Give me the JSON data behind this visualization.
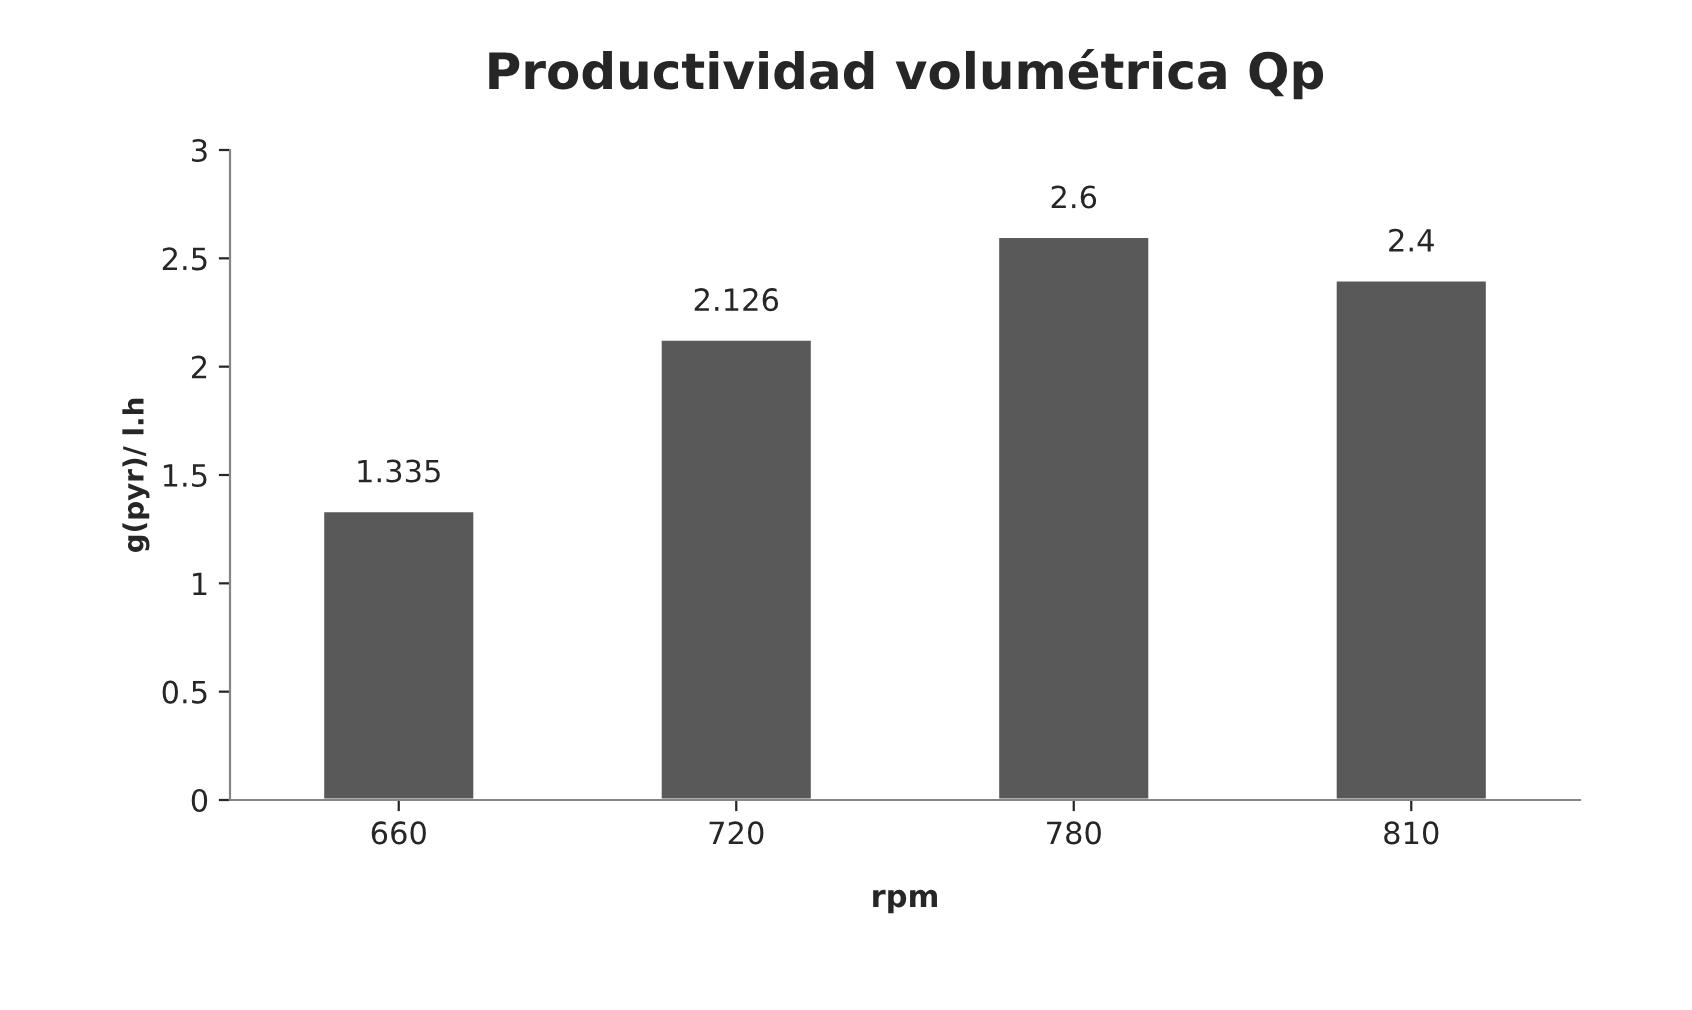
{
  "chart_data": {
    "type": "bar",
    "title": "Productividad volumétrica Qp",
    "xlabel": "rpm",
    "ylabel": "g(pyr)/ l.h",
    "categories": [
      "660",
      "720",
      "780",
      "810"
    ],
    "values": [
      1.335,
      2.126,
      2.6,
      2.4
    ],
    "color": "#595959",
    "ylim": [
      0,
      3
    ],
    "yticks": [
      0,
      0.5,
      1,
      1.5,
      2,
      2.5,
      3
    ],
    "grid": false,
    "data_labels": true
  }
}
